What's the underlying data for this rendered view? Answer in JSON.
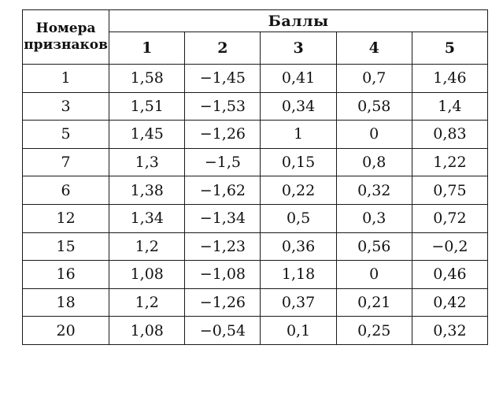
{
  "table": {
    "header": {
      "feature_label": "Номера признаков",
      "feature_label_line1": "Номера",
      "feature_label_line2": "признаков",
      "scores_label": "Баллы",
      "score_columns": [
        "1",
        "2",
        "3",
        "4",
        "5"
      ]
    },
    "rows": [
      {
        "feature": "1",
        "scores": [
          "1,58",
          "−1,45",
          "0,41",
          "0,7",
          "1,46"
        ]
      },
      {
        "feature": "3",
        "scores": [
          "1,51",
          "−1,53",
          "0,34",
          "0,58",
          "1,4"
        ]
      },
      {
        "feature": "5",
        "scores": [
          "1,45",
          "−1,26",
          "1",
          "0",
          "0,83"
        ]
      },
      {
        "feature": "7",
        "scores": [
          "1,3",
          "−1,5",
          "0,15",
          "0,8",
          "1,22"
        ]
      },
      {
        "feature": "6",
        "scores": [
          "1,38",
          "−1,62",
          "0,22",
          "0,32",
          "0,75"
        ]
      },
      {
        "feature": "12",
        "scores": [
          "1,34",
          "−1,34",
          "0,5",
          "0,3",
          "0,72"
        ]
      },
      {
        "feature": "15",
        "scores": [
          "1,2",
          "−1,23",
          "0,36",
          "0,56",
          "−0,2"
        ]
      },
      {
        "feature": "16",
        "scores": [
          "1,08",
          "−1,08",
          "1,18",
          "0",
          "0,46"
        ]
      },
      {
        "feature": "18",
        "scores": [
          "1,2",
          "−1,26",
          "0,37",
          "0,21",
          "0,42"
        ]
      },
      {
        "feature": "20",
        "scores": [
          "1,08",
          "−0,54",
          "0,1",
          "0,25",
          "0,32"
        ]
      }
    ]
  }
}
